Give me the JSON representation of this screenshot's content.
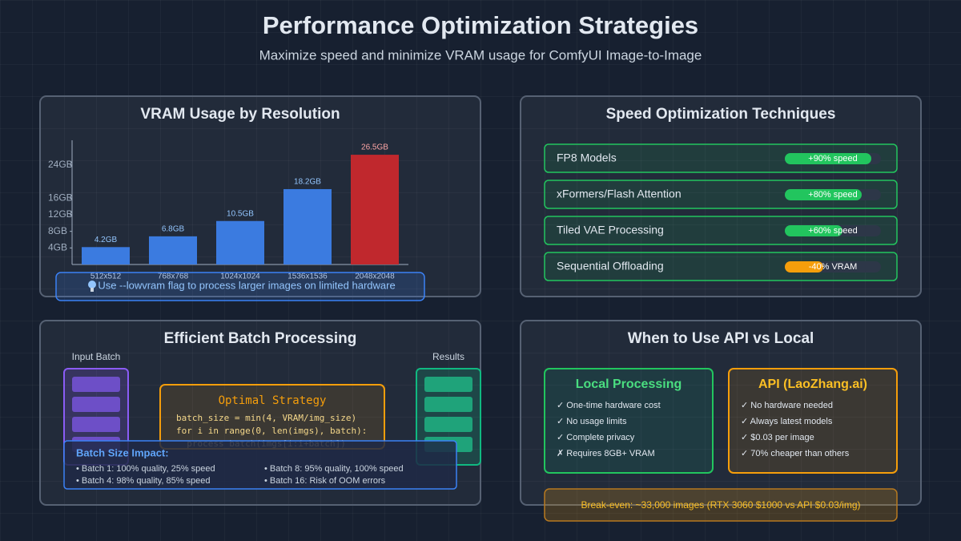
{
  "header": {
    "title": "Performance Optimization Strategies",
    "subtitle": "Maximize speed and minimize VRAM usage for ComfyUI Image-to-Image"
  },
  "chart_data": {
    "type": "bar",
    "title": "VRAM Usage by Resolution",
    "categories": [
      "512x512",
      "768x768",
      "1024x1024",
      "1536x1536",
      "2048x2048"
    ],
    "values": [
      4.2,
      6.8,
      10.5,
      18.2,
      26.5
    ],
    "value_labels": [
      "4.2GB",
      "6.8GB",
      "10.5GB",
      "18.2GB",
      "26.5GB"
    ],
    "colors": [
      "#3b7be0",
      "#3b7be0",
      "#3b7be0",
      "#3b7be0",
      "#c0282d"
    ],
    "ylim": [
      0,
      30
    ],
    "yticks": [
      {
        "value": 4,
        "label": "4GB"
      },
      {
        "value": 8,
        "label": "8GB"
      },
      {
        "value": 12,
        "label": "12GB"
      },
      {
        "value": 16,
        "label": "16GB"
      },
      {
        "value": 24,
        "label": "24GB"
      }
    ],
    "note": "Use --lowvram flag to process larger images on limited hardware"
  },
  "speed": {
    "title": "Speed Optimization Techniques",
    "items": [
      {
        "name": "FP8 Models",
        "value": 90,
        "label": "+90% speed",
        "color": "#22c55e"
      },
      {
        "name": "xFormers/Flash Attention",
        "value": 80,
        "label": "+80% speed",
        "color": "#22c55e"
      },
      {
        "name": "Tiled VAE Processing",
        "value": 60,
        "label": "+60% speed",
        "color": "#22c55e"
      },
      {
        "name": "Sequential Offloading",
        "value": -40,
        "label": "-40% VRAM",
        "color": "#f59e0b"
      }
    ]
  },
  "batch": {
    "title": "Efficient Batch Processing",
    "input_label": "Input Batch",
    "results_label": "Results",
    "strategy_title": "Optimal Strategy",
    "code": [
      "batch_size = min(4, VRAM/img_size)",
      "for i in range(0, len(imgs), batch):",
      "  process_batch(imgs[i:i+batch])"
    ],
    "impact_title": "Batch Size Impact:",
    "impact": [
      "• Batch 1: 100% quality, 25% speed",
      "• Batch 4: 98% quality, 85% speed",
      "• Batch 8: 95% quality, 100% speed",
      "• Batch 16: Risk of OOM errors"
    ]
  },
  "api": {
    "title": "When to Use API vs Local",
    "local": {
      "title": "Local Processing",
      "items": [
        "✓ One-time hardware cost",
        "✓ No usage limits",
        "✓ Complete privacy",
        "✗ Requires 8GB+ VRAM"
      ]
    },
    "api": {
      "title": "API (LaoZhang.ai)",
      "items": [
        "✓ No hardware needed",
        "✓ Always latest models",
        "✓ $0.03 per image",
        "✓ 70% cheaper than others"
      ]
    },
    "breakeven": "Break-even: ~33,000 images (RTX 3060 $1000 vs API $0.03/img)"
  }
}
